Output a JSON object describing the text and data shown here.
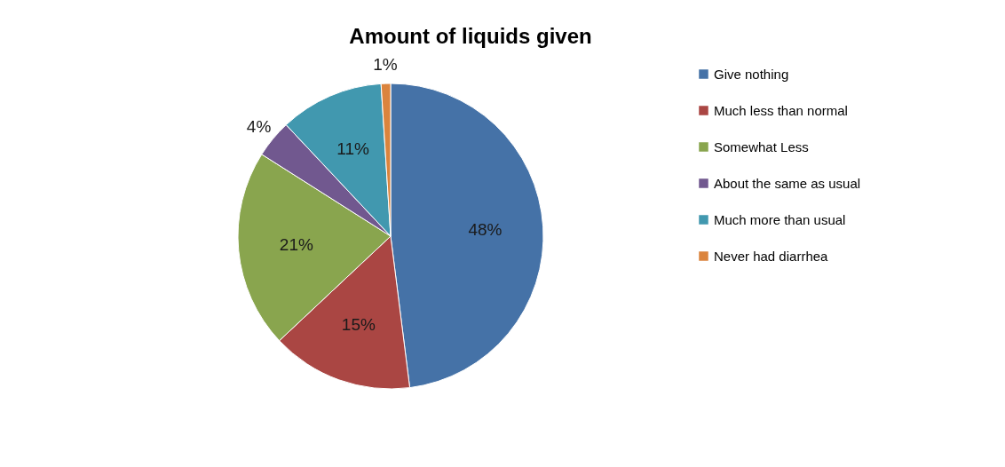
{
  "chart_data": {
    "type": "pie",
    "title": "Amount of liquids given",
    "categories": [
      "Give nothing",
      "Much less than normal",
      "Somewhat Less",
      "About the same as usual",
      "Much more than usual",
      "Never had diarrhea"
    ],
    "values": [
      48,
      15,
      21,
      4,
      11,
      1
    ],
    "colors": [
      "#4572a7",
      "#aa4643",
      "#89a54e",
      "#71588f",
      "#4198af",
      "#db843d"
    ],
    "value_labels": [
      "48%",
      "15%",
      "21%",
      "4%",
      "11%",
      "1%"
    ],
    "legend": "right"
  }
}
